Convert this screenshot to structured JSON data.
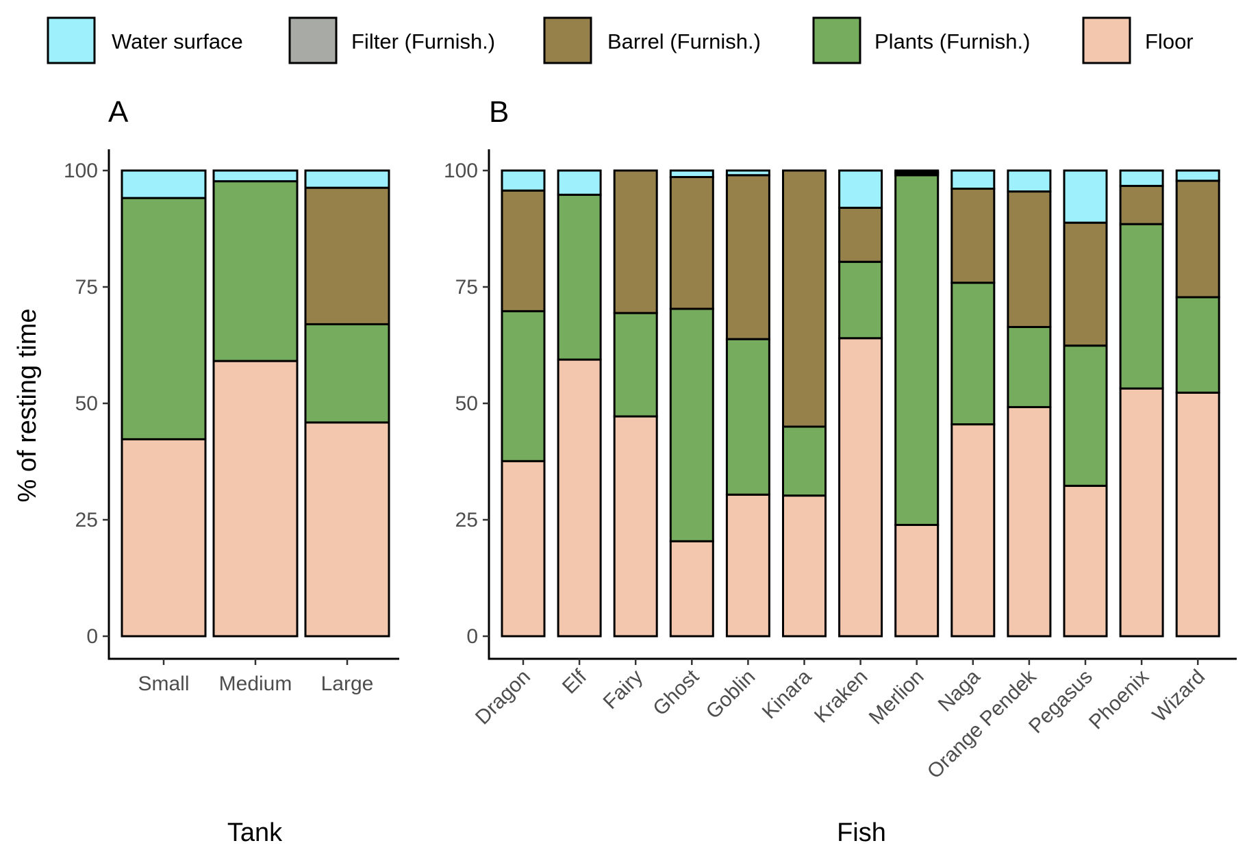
{
  "legend": {
    "items": [
      {
        "label": "Water surface",
        "color": "#9EF0FD"
      },
      {
        "label": "Filter (Furnish.)",
        "color": "#A7AAA5"
      },
      {
        "label": "Barrel (Furnish.)",
        "color": "#97814B"
      },
      {
        "label": "Plants (Furnish.)",
        "color": "#76AC5D"
      },
      {
        "label": "Floor",
        "color": "#F3C6AE"
      }
    ]
  },
  "y_axis_title": "% of resting time",
  "chart_data": [
    {
      "type": "bar",
      "stacked": true,
      "panel_label": "A",
      "xlabel": "Tank",
      "ylabel": "% of resting time",
      "ylim": [
        0,
        100
      ],
      "yticks": [
        0,
        25,
        50,
        75,
        100
      ],
      "categories": [
        "Small",
        "Medium",
        "Large"
      ],
      "series": [
        {
          "name": "Floor",
          "values": [
            42.3,
            59.1,
            45.9
          ]
        },
        {
          "name": "Plants (Furnish.)",
          "values": [
            51.8,
            38.6,
            21.1
          ]
        },
        {
          "name": "Barrel (Furnish.)",
          "values": [
            0,
            0,
            29.3
          ]
        },
        {
          "name": "Filter (Furnish.)",
          "values": [
            0,
            0,
            0
          ]
        },
        {
          "name": "Water surface",
          "values": [
            5.9,
            2.3,
            3.7
          ]
        }
      ],
      "grid": false,
      "legend_position": "top"
    },
    {
      "type": "bar",
      "stacked": true,
      "panel_label": "B",
      "xlabel": "Fish",
      "ylabel": "",
      "ylim": [
        0,
        100
      ],
      "yticks": [
        0,
        25,
        50,
        75,
        100
      ],
      "categories": [
        "Dragon",
        "Elf",
        "Fairy",
        "Ghost",
        "Goblin",
        "Kinara",
        "Kraken",
        "Merlion",
        "Naga",
        "Orange Pendek",
        "Pegasus",
        "Phoenix",
        "Wizard"
      ],
      "series": [
        {
          "name": "Floor",
          "values": [
            37.6,
            59.4,
            47.2,
            20.4,
            30.4,
            30.2,
            64.0,
            23.9,
            45.5,
            49.2,
            32.3,
            53.2,
            52.3
          ]
        },
        {
          "name": "Plants (Furnish.)",
          "values": [
            32.2,
            35.4,
            22.2,
            49.9,
            33.4,
            14.8,
            16.4,
            75.1,
            30.4,
            17.2,
            30.1,
            35.3,
            20.5
          ]
        },
        {
          "name": "Barrel (Furnish.)",
          "values": [
            25.9,
            0,
            30.6,
            28.3,
            35.2,
            55.0,
            11.6,
            0.4,
            20.2,
            29.1,
            26.4,
            8.2,
            25.0
          ]
        },
        {
          "name": "Filter (Furnish.)",
          "values": [
            0,
            0,
            0,
            0,
            0,
            0,
            0,
            0.3,
            0,
            0,
            0,
            0,
            0
          ]
        },
        {
          "name": "Water surface",
          "values": [
            4.3,
            5.2,
            0,
            1.4,
            1.0,
            0,
            8.0,
            0.3,
            3.9,
            4.5,
            11.2,
            3.3,
            2.2
          ]
        }
      ],
      "grid": false,
      "legend_position": "top"
    }
  ]
}
